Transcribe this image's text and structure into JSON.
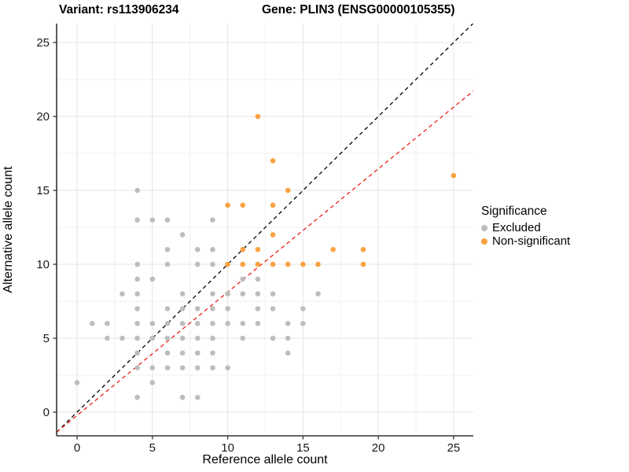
{
  "chart_data": {
    "type": "scatter",
    "title_left": "Variant: rs113906234",
    "title_right": "Gene: PLIN3 (ENSG00000105355)",
    "xlabel": "Reference allele count",
    "ylabel": "Alternative allele count",
    "x_ticks": [
      0,
      5,
      10,
      15,
      20,
      25
    ],
    "y_ticks": [
      0,
      5,
      10,
      15,
      20,
      25
    ],
    "xlim": [
      -1.36,
      26.31
    ],
    "ylim": [
      -1.6,
      26.28
    ],
    "grid": {
      "major_step": 5,
      "minor_step": 2.5,
      "major_color": "#e4e4e4",
      "minor_color": "#f2f2f2"
    },
    "legend": {
      "title": "Significance",
      "position": "right",
      "items": [
        {
          "label": "Excluded",
          "color": "#bdbdbd"
        },
        {
          "label": "Non-significant",
          "color": "#f9a242"
        }
      ]
    },
    "series": [
      {
        "name": "Excluded",
        "color": "#bdbdbd",
        "points": [
          [
            0,
            2
          ],
          [
            1,
            6
          ],
          [
            2,
            5
          ],
          [
            2,
            6
          ],
          [
            3,
            5
          ],
          [
            3,
            8
          ],
          [
            4,
            1
          ],
          [
            4,
            3
          ],
          [
            4,
            4
          ],
          [
            4,
            5
          ],
          [
            4,
            6
          ],
          [
            4,
            7
          ],
          [
            4,
            8
          ],
          [
            4,
            9
          ],
          [
            4,
            10
          ],
          [
            4,
            13
          ],
          [
            4,
            15
          ],
          [
            5,
            2
          ],
          [
            5,
            3
          ],
          [
            5,
            5
          ],
          [
            5,
            6
          ],
          [
            5,
            9
          ],
          [
            5,
            13
          ],
          [
            6,
            3
          ],
          [
            6,
            4
          ],
          [
            6,
            5
          ],
          [
            6,
            6
          ],
          [
            6,
            7
          ],
          [
            6,
            10
          ],
          [
            6,
            11
          ],
          [
            6,
            13
          ],
          [
            7,
            1
          ],
          [
            7,
            3
          ],
          [
            7,
            4
          ],
          [
            7,
            5
          ],
          [
            7,
            6
          ],
          [
            7,
            7
          ],
          [
            7,
            8
          ],
          [
            7,
            12
          ],
          [
            8,
            1
          ],
          [
            8,
            3
          ],
          [
            8,
            4
          ],
          [
            8,
            5
          ],
          [
            8,
            6
          ],
          [
            8,
            7
          ],
          [
            8,
            10
          ],
          [
            8,
            11
          ],
          [
            9,
            3
          ],
          [
            9,
            4
          ],
          [
            9,
            5
          ],
          [
            9,
            6
          ],
          [
            9,
            7
          ],
          [
            9,
            8
          ],
          [
            9,
            10
          ],
          [
            9,
            11
          ],
          [
            9,
            13
          ],
          [
            10,
            3
          ],
          [
            10,
            6
          ],
          [
            10,
            7
          ],
          [
            10,
            8
          ],
          [
            11,
            5
          ],
          [
            11,
            6
          ],
          [
            11,
            8
          ],
          [
            11,
            9
          ],
          [
            12,
            6
          ],
          [
            12,
            7
          ],
          [
            12,
            8
          ],
          [
            12,
            9
          ],
          [
            13,
            5
          ],
          [
            13,
            7
          ],
          [
            13,
            8
          ],
          [
            14,
            4
          ],
          [
            14,
            5
          ],
          [
            14,
            6
          ],
          [
            15,
            6
          ],
          [
            15,
            7
          ],
          [
            16,
            8
          ]
        ]
      },
      {
        "name": "Non-significant",
        "color": "#f9a242",
        "points": [
          [
            10,
            10
          ],
          [
            10,
            14
          ],
          [
            11,
            10
          ],
          [
            11,
            11
          ],
          [
            11,
            14
          ],
          [
            12,
            10
          ],
          [
            12,
            11
          ],
          [
            12,
            20
          ],
          [
            13,
            10
          ],
          [
            13,
            12
          ],
          [
            13,
            14
          ],
          [
            13,
            17
          ],
          [
            14,
            10
          ],
          [
            14,
            15
          ],
          [
            15,
            10
          ],
          [
            16,
            10
          ],
          [
            17,
            11
          ],
          [
            19,
            10
          ],
          [
            19,
            11
          ],
          [
            25,
            16
          ]
        ]
      }
    ],
    "lines": [
      {
        "name": "identity-line",
        "color": "#000000",
        "style": "dashed",
        "slope": 1,
        "intercept": 0
      },
      {
        "name": "regression-line",
        "color": "#f01d12",
        "style": "dashed",
        "slope": 0.834,
        "intercept": -0.22
      }
    ]
  }
}
